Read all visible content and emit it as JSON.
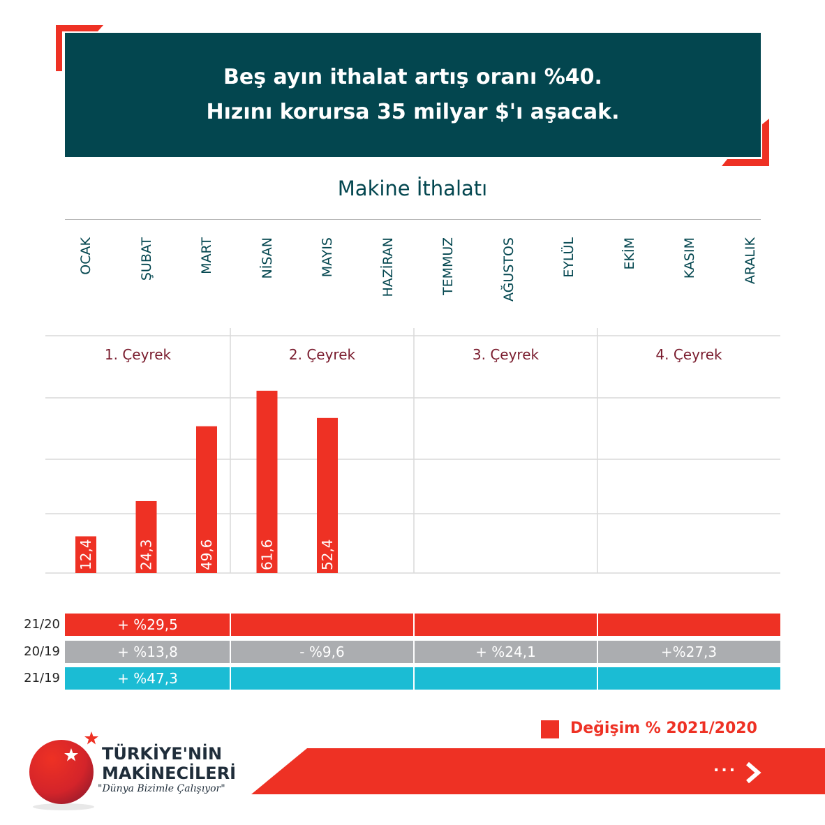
{
  "header": {
    "line1": "Beş ayın ithalat artış oranı %40.",
    "line2": "Hızını korursa 35 milyar $'ı aşacak."
  },
  "colors": {
    "header_bg": "#03464f",
    "accent_red": "#ee3124",
    "gray": "#abadb0",
    "cyan": "#1bbcd4",
    "title_text": "#03464f",
    "quarter_text": "#7a1c2e"
  },
  "chart_data": {
    "type": "bar",
    "title": "Makine İthalatı",
    "categories": [
      "OCAK",
      "ŞUBAT",
      "MART",
      "NİSAN",
      "MAYIS",
      "HAZİRAN",
      "TEMMUZ",
      "AĞUSTOS",
      "EYLÜL",
      "EKİM",
      "KASIM",
      "ARALIK"
    ],
    "quarters": [
      "1. Çeyrek",
      "2. Çeyrek",
      "3. Çeyrek",
      "4. Çeyrek"
    ],
    "series": [
      {
        "name": "Değişim % 2021/2020",
        "values": [
          12.4,
          24.3,
          49.6,
          61.6,
          52.4,
          null,
          null,
          null,
          null,
          null,
          null,
          null
        ]
      }
    ],
    "data_labels": [
      "12,4",
      "24,3",
      "49,6",
      "61,6",
      "52,4"
    ],
    "ylim": [
      0,
      70
    ],
    "grid": true,
    "legend_position": "bottom-right"
  },
  "table": {
    "rows": [
      {
        "label": "21/20",
        "color": "#ee3124",
        "cells": [
          "+ %29,5",
          "",
          "",
          ""
        ]
      },
      {
        "label": "20/19",
        "color": "#abadb0",
        "cells": [
          "+ %13,8",
          "- %9,6",
          "+ %24,1",
          "+%27,3"
        ]
      },
      {
        "label": "21/19",
        "color": "#1bbcd4",
        "cells": [
          "+ %47,3",
          "",
          "",
          ""
        ]
      }
    ]
  },
  "legend": {
    "label": "Değişim % 2021/2020"
  },
  "brand": {
    "line1": "TÜRKİYE'NİN",
    "line2": "MAKİNECİLERİ",
    "slogan": "\"Dünya Bizimle Çalışıyor\""
  },
  "nav": {
    "more": "..."
  }
}
